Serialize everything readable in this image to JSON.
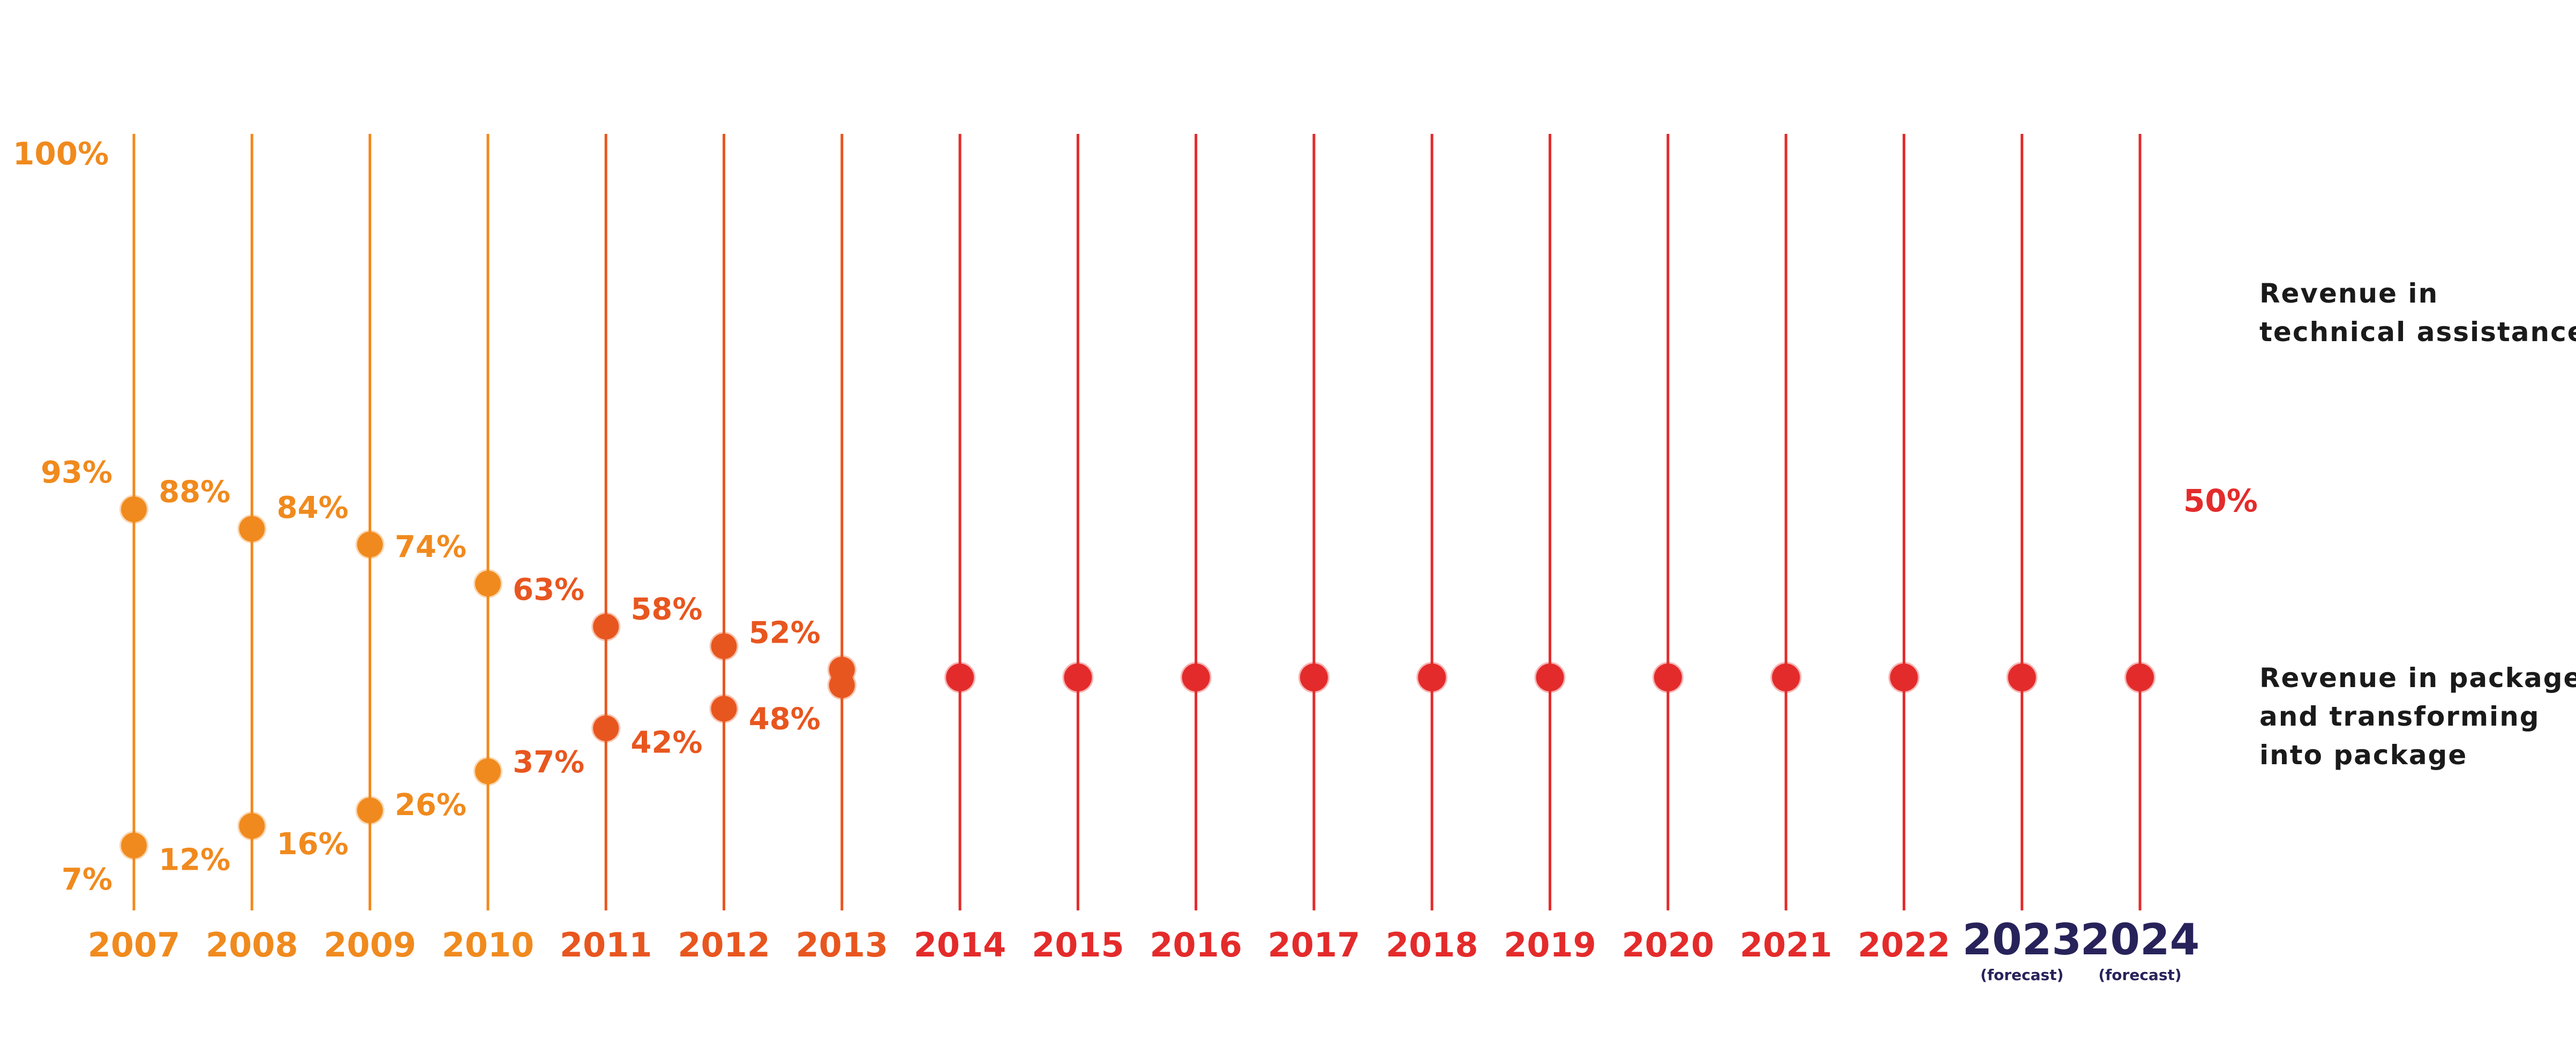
{
  "chart_data": {
    "type": "scatter",
    "ylim": [
      0,
      100
    ],
    "top_label": "100%",
    "x": [
      "2007",
      "2008",
      "2009",
      "2010",
      "2011",
      "2012",
      "2013",
      "2014",
      "2015",
      "2016",
      "2017",
      "2018",
      "2019",
      "2020",
      "2021",
      "2022",
      "2023",
      "2024"
    ],
    "forecast_note": "(forecast)",
    "forecast_years": [
      "2023",
      "2024"
    ],
    "series": [
      {
        "legend_lines": [
          "Revenue in",
          "technical assistance"
        ],
        "values": [
          93,
          88,
          84,
          74,
          63,
          58,
          52,
          50,
          50,
          50,
          50,
          50,
          50,
          50,
          50,
          50,
          50,
          50
        ],
        "labels": [
          "93%",
          "88%",
          "84%",
          "74%",
          "63%",
          "58%",
          "52%",
          "",
          "",
          "",
          "",
          "",
          "",
          "",
          "",
          "",
          "",
          ""
        ]
      },
      {
        "legend_lines": [
          "Revenue in package",
          "and transforming",
          "into package"
        ],
        "values": [
          7,
          12,
          16,
          26,
          37,
          42,
          48,
          50,
          50,
          50,
          50,
          50,
          50,
          50,
          50,
          50,
          50,
          50
        ],
        "labels": [
          "7%",
          "12%",
          "16%",
          "26%",
          "37%",
          "42%",
          "48%",
          "",
          "",
          "",
          "",
          "",
          "",
          "",
          "",
          "",
          "",
          ""
        ]
      }
    ],
    "merged_label": "50%",
    "colors": {
      "orange": "#f08a1e",
      "orange_red": "#e8561f",
      "red": "#e42b2b",
      "forecast": "#27235a"
    }
  }
}
